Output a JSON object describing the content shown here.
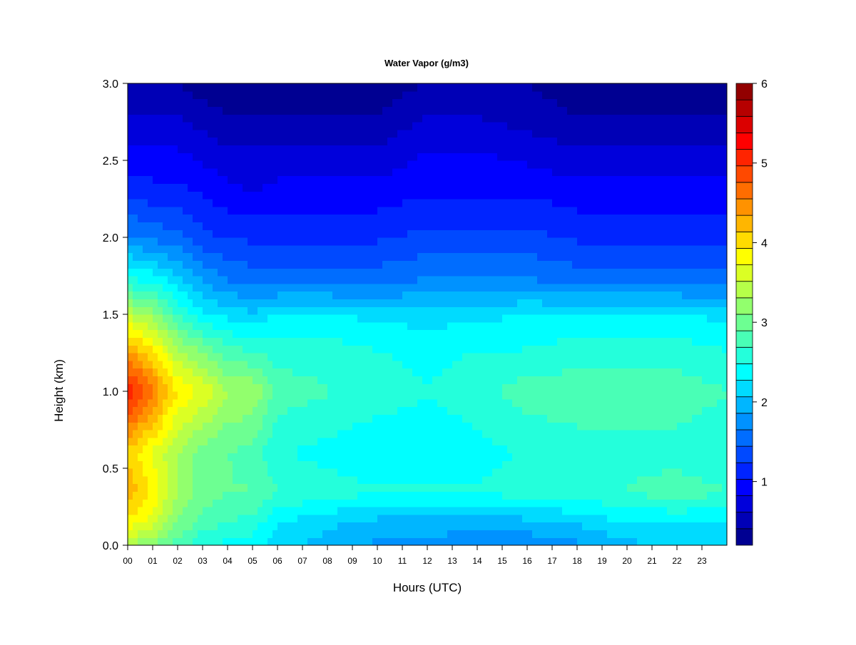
{
  "chart_data": {
    "type": "heatmap",
    "title": "Water Vapor (g/m3)",
    "xlabel": "Hours (UTC)",
    "ylabel": "Height (km)",
    "x_ticks": [
      "00",
      "01",
      "02",
      "03",
      "04",
      "05",
      "06",
      "07",
      "08",
      "09",
      "10",
      "11",
      "12",
      "13",
      "14",
      "15",
      "16",
      "17",
      "18",
      "19",
      "20",
      "21",
      "22",
      "23"
    ],
    "y_ticks": [
      "0.0",
      "0.5",
      "1.0",
      "1.5",
      "2.0",
      "2.5",
      "3.0"
    ],
    "xlim": [
      0,
      24
    ],
    "ylim": [
      0,
      3.0
    ],
    "colorbar": {
      "range": [
        0.2,
        6.0
      ],
      "levels": 28,
      "ticks": [
        "1",
        "2",
        "3",
        "4",
        "5",
        "6"
      ],
      "colormap": "jet"
    },
    "hours": [
      0,
      1,
      2,
      3,
      4,
      5,
      6,
      8,
      10,
      12,
      14,
      16,
      18,
      20,
      22,
      24
    ],
    "heights_km": [
      0.0,
      0.15,
      0.35,
      0.6,
      1.0,
      1.25,
      1.5,
      1.7,
      2.0,
      2.3,
      2.6,
      2.8,
      3.0
    ],
    "values": [
      [
        3.3,
        3.9,
        4.3,
        4.1,
        5.2,
        4.4,
        3.5,
        2.6,
        1.7,
        1.2,
        0.8,
        0.6,
        0.4
      ],
      [
        3.1,
        3.6,
        3.9,
        3.7,
        4.6,
        4.0,
        3.2,
        2.5,
        1.6,
        1.1,
        0.8,
        0.6,
        0.4
      ],
      [
        2.8,
        3.1,
        3.3,
        3.3,
        3.9,
        3.4,
        2.7,
        2.2,
        1.5,
        1.1,
        0.8,
        0.6,
        0.4
      ],
      [
        2.5,
        2.8,
        3.0,
        3.0,
        3.7,
        3.1,
        2.3,
        1.9,
        1.3,
        1.0,
        0.7,
        0.5,
        0.3
      ],
      [
        2.4,
        2.7,
        2.9,
        2.9,
        3.3,
        2.8,
        2.2,
        1.7,
        1.2,
        0.9,
        0.6,
        0.4,
        0.3
      ],
      [
        2.4,
        2.6,
        2.9,
        2.8,
        3.3,
        2.7,
        2.1,
        1.6,
        1.2,
        0.8,
        0.6,
        0.4,
        0.3
      ],
      [
        2.1,
        2.3,
        2.7,
        2.5,
        2.8,
        2.6,
        2.3,
        1.6,
        1.2,
        0.9,
        0.6,
        0.4,
        0.3
      ],
      [
        2.0,
        2.1,
        2.6,
        2.4,
        2.7,
        2.6,
        2.3,
        1.6,
        1.2,
        0.9,
        0.6,
        0.4,
        0.3
      ],
      [
        1.8,
        2.0,
        2.5,
        2.3,
        2.6,
        2.5,
        2.2,
        1.6,
        1.2,
        0.9,
        0.6,
        0.4,
        0.3
      ],
      [
        1.8,
        2.0,
        2.5,
        2.3,
        2.5,
        2.4,
        2.2,
        1.7,
        1.3,
        1.0,
        0.8,
        0.6,
        0.4
      ],
      [
        1.7,
        1.9,
        2.5,
        2.4,
        2.6,
        2.5,
        2.2,
        1.7,
        1.3,
        1.0,
        0.8,
        0.6,
        0.4
      ],
      [
        1.7,
        2.0,
        2.6,
        2.5,
        2.8,
        2.5,
        2.3,
        1.7,
        1.3,
        1.0,
        0.7,
        0.5,
        0.4
      ],
      [
        1.8,
        2.1,
        2.6,
        2.6,
        2.8,
        2.6,
        2.3,
        1.6,
        1.2,
        0.9,
        0.6,
        0.4,
        0.3
      ],
      [
        2.0,
        2.3,
        2.7,
        2.6,
        2.8,
        2.6,
        2.3,
        1.6,
        1.2,
        0.9,
        0.6,
        0.4,
        0.3
      ],
      [
        2.1,
        2.3,
        2.8,
        2.6,
        2.8,
        2.6,
        2.3,
        1.6,
        1.2,
        0.9,
        0.6,
        0.4,
        0.3
      ],
      [
        2.1,
        2.3,
        2.7,
        2.5,
        2.7,
        2.5,
        2.2,
        1.6,
        1.2,
        0.9,
        0.6,
        0.4,
        0.3
      ]
    ]
  }
}
